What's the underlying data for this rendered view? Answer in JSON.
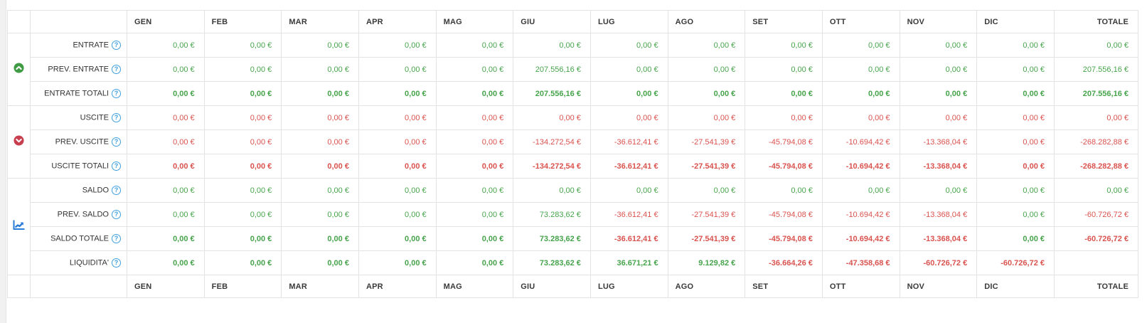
{
  "table": {
    "columns": [
      "GEN",
      "FEB",
      "MAR",
      "APR",
      "MAG",
      "GIU",
      "LUG",
      "AGO",
      "SET",
      "OTT",
      "NOV",
      "DIC",
      "TOTALE"
    ],
    "help_glyph": "?",
    "colors": {
      "value_green": "#47a44c",
      "value_red": "#d9534f",
      "badge_green": "#3f9c44",
      "badge_red": "#c73e4e",
      "chart_blue": "#2b7cd8",
      "help_blue": "#3f9fdd",
      "header_text": "#3a3a3a",
      "border": "#e3e3e3"
    },
    "groups": [
      {
        "id": "entrate",
        "icon": "trend-up-icon",
        "rows": [
          {
            "label": "ENTRATE",
            "bold": false,
            "cells": [
              {
                "v": "0,00 €",
                "c": "g"
              },
              {
                "v": "0,00 €",
                "c": "g"
              },
              {
                "v": "0,00 €",
                "c": "g"
              },
              {
                "v": "0,00 €",
                "c": "g"
              },
              {
                "v": "0,00 €",
                "c": "g"
              },
              {
                "v": "0,00 €",
                "c": "g"
              },
              {
                "v": "0,00 €",
                "c": "g"
              },
              {
                "v": "0,00 €",
                "c": "g"
              },
              {
                "v": "0,00 €",
                "c": "g"
              },
              {
                "v": "0,00 €",
                "c": "g"
              },
              {
                "v": "0,00 €",
                "c": "g"
              },
              {
                "v": "0,00 €",
                "c": "g"
              },
              {
                "v": "0,00 €",
                "c": "g"
              }
            ]
          },
          {
            "label": "PREV. ENTRATE",
            "bold": false,
            "cells": [
              {
                "v": "0,00 €",
                "c": "g"
              },
              {
                "v": "0,00 €",
                "c": "g"
              },
              {
                "v": "0,00 €",
                "c": "g"
              },
              {
                "v": "0,00 €",
                "c": "g"
              },
              {
                "v": "0,00 €",
                "c": "g"
              },
              {
                "v": "207.556,16 €",
                "c": "g"
              },
              {
                "v": "0,00 €",
                "c": "g"
              },
              {
                "v": "0,00 €",
                "c": "g"
              },
              {
                "v": "0,00 €",
                "c": "g"
              },
              {
                "v": "0,00 €",
                "c": "g"
              },
              {
                "v": "0,00 €",
                "c": "g"
              },
              {
                "v": "0,00 €",
                "c": "g"
              },
              {
                "v": "207.556,16 €",
                "c": "g"
              }
            ]
          },
          {
            "label": "ENTRATE TOTALI",
            "bold": true,
            "cells": [
              {
                "v": "0,00 €",
                "c": "g"
              },
              {
                "v": "0,00 €",
                "c": "g"
              },
              {
                "v": "0,00 €",
                "c": "g"
              },
              {
                "v": "0,00 €",
                "c": "g"
              },
              {
                "v": "0,00 €",
                "c": "g"
              },
              {
                "v": "207.556,16 €",
                "c": "g"
              },
              {
                "v": "0,00 €",
                "c": "g"
              },
              {
                "v": "0,00 €",
                "c": "g"
              },
              {
                "v": "0,00 €",
                "c": "g"
              },
              {
                "v": "0,00 €",
                "c": "g"
              },
              {
                "v": "0,00 €",
                "c": "g"
              },
              {
                "v": "0,00 €",
                "c": "g"
              },
              {
                "v": "207.556,16 €",
                "c": "g"
              }
            ]
          }
        ]
      },
      {
        "id": "uscite",
        "icon": "trend-down-icon",
        "rows": [
          {
            "label": "USCITE",
            "bold": false,
            "cells": [
              {
                "v": "0,00 €",
                "c": "r"
              },
              {
                "v": "0,00 €",
                "c": "r"
              },
              {
                "v": "0,00 €",
                "c": "r"
              },
              {
                "v": "0,00 €",
                "c": "r"
              },
              {
                "v": "0,00 €",
                "c": "r"
              },
              {
                "v": "0,00 €",
                "c": "r"
              },
              {
                "v": "0,00 €",
                "c": "r"
              },
              {
                "v": "0,00 €",
                "c": "r"
              },
              {
                "v": "0,00 €",
                "c": "r"
              },
              {
                "v": "0,00 €",
                "c": "r"
              },
              {
                "v": "0,00 €",
                "c": "r"
              },
              {
                "v": "0,00 €",
                "c": "r"
              },
              {
                "v": "0,00 €",
                "c": "r"
              }
            ]
          },
          {
            "label": "PREV. USCITE",
            "bold": false,
            "cells": [
              {
                "v": "0,00 €",
                "c": "r"
              },
              {
                "v": "0,00 €",
                "c": "r"
              },
              {
                "v": "0,00 €",
                "c": "r"
              },
              {
                "v": "0,00 €",
                "c": "r"
              },
              {
                "v": "0,00 €",
                "c": "r"
              },
              {
                "v": "-134.272,54 €",
                "c": "r"
              },
              {
                "v": "-36.612,41 €",
                "c": "r"
              },
              {
                "v": "-27.541,39 €",
                "c": "r"
              },
              {
                "v": "-45.794,08 €",
                "c": "r"
              },
              {
                "v": "-10.694,42 €",
                "c": "r"
              },
              {
                "v": "-13.368,04 €",
                "c": "r"
              },
              {
                "v": "0,00 €",
                "c": "r"
              },
              {
                "v": "-268.282,88 €",
                "c": "r"
              }
            ]
          },
          {
            "label": "USCITE TOTALI",
            "bold": true,
            "cells": [
              {
                "v": "0,00 €",
                "c": "r"
              },
              {
                "v": "0,00 €",
                "c": "r"
              },
              {
                "v": "0,00 €",
                "c": "r"
              },
              {
                "v": "0,00 €",
                "c": "r"
              },
              {
                "v": "0,00 €",
                "c": "r"
              },
              {
                "v": "-134.272,54 €",
                "c": "r"
              },
              {
                "v": "-36.612,41 €",
                "c": "r"
              },
              {
                "v": "-27.541,39 €",
                "c": "r"
              },
              {
                "v": "-45.794,08 €",
                "c": "r"
              },
              {
                "v": "-10.694,42 €",
                "c": "r"
              },
              {
                "v": "-13.368,04 €",
                "c": "r"
              },
              {
                "v": "0,00 €",
                "c": "r"
              },
              {
                "v": "-268.282,88 €",
                "c": "r"
              }
            ]
          }
        ]
      },
      {
        "id": "saldo",
        "icon": "chart-line-icon",
        "rows": [
          {
            "label": "SALDO",
            "bold": false,
            "cells": [
              {
                "v": "0,00 €",
                "c": "g"
              },
              {
                "v": "0,00 €",
                "c": "g"
              },
              {
                "v": "0,00 €",
                "c": "g"
              },
              {
                "v": "0,00 €",
                "c": "g"
              },
              {
                "v": "0,00 €",
                "c": "g"
              },
              {
                "v": "0,00 €",
                "c": "g"
              },
              {
                "v": "0,00 €",
                "c": "g"
              },
              {
                "v": "0,00 €",
                "c": "g"
              },
              {
                "v": "0,00 €",
                "c": "g"
              },
              {
                "v": "0,00 €",
                "c": "g"
              },
              {
                "v": "0,00 €",
                "c": "g"
              },
              {
                "v": "0,00 €",
                "c": "g"
              },
              {
                "v": "0,00 €",
                "c": "g"
              }
            ]
          },
          {
            "label": "PREV. SALDO",
            "bold": false,
            "cells": [
              {
                "v": "0,00 €",
                "c": "g"
              },
              {
                "v": "0,00 €",
                "c": "g"
              },
              {
                "v": "0,00 €",
                "c": "g"
              },
              {
                "v": "0,00 €",
                "c": "g"
              },
              {
                "v": "0,00 €",
                "c": "g"
              },
              {
                "v": "73.283,62 €",
                "c": "g"
              },
              {
                "v": "-36.612,41 €",
                "c": "r"
              },
              {
                "v": "-27.541,39 €",
                "c": "r"
              },
              {
                "v": "-45.794,08 €",
                "c": "r"
              },
              {
                "v": "-10.694,42 €",
                "c": "r"
              },
              {
                "v": "-13.368,04 €",
                "c": "r"
              },
              {
                "v": "0,00 €",
                "c": "g"
              },
              {
                "v": "-60.726,72 €",
                "c": "r"
              }
            ]
          },
          {
            "label": "SALDO TOTALE",
            "bold": true,
            "cells": [
              {
                "v": "0,00 €",
                "c": "g"
              },
              {
                "v": "0,00 €",
                "c": "g"
              },
              {
                "v": "0,00 €",
                "c": "g"
              },
              {
                "v": "0,00 €",
                "c": "g"
              },
              {
                "v": "0,00 €",
                "c": "g"
              },
              {
                "v": "73.283,62 €",
                "c": "g"
              },
              {
                "v": "-36.612,41 €",
                "c": "r"
              },
              {
                "v": "-27.541,39 €",
                "c": "r"
              },
              {
                "v": "-45.794,08 €",
                "c": "r"
              },
              {
                "v": "-10.694,42 €",
                "c": "r"
              },
              {
                "v": "-13.368,04 €",
                "c": "r"
              },
              {
                "v": "0,00 €",
                "c": "g"
              },
              {
                "v": "-60.726,72 €",
                "c": "r"
              }
            ]
          },
          {
            "label": "LIQUIDITA'",
            "bold": true,
            "cells": [
              {
                "v": "0,00 €",
                "c": "g"
              },
              {
                "v": "0,00 €",
                "c": "g"
              },
              {
                "v": "0,00 €",
                "c": "g"
              },
              {
                "v": "0,00 €",
                "c": "g"
              },
              {
                "v": "0,00 €",
                "c": "g"
              },
              {
                "v": "73.283,62 €",
                "c": "g"
              },
              {
                "v": "36.671,21 €",
                "c": "g"
              },
              {
                "v": "9.129,82 €",
                "c": "g"
              },
              {
                "v": "-36.664,26 €",
                "c": "r"
              },
              {
                "v": "-47.358,68 €",
                "c": "r"
              },
              {
                "v": "-60.726,72 €",
                "c": "r"
              },
              {
                "v": "-60.726,72 €",
                "c": "r"
              },
              {
                "v": "",
                "c": ""
              }
            ]
          }
        ]
      }
    ]
  }
}
